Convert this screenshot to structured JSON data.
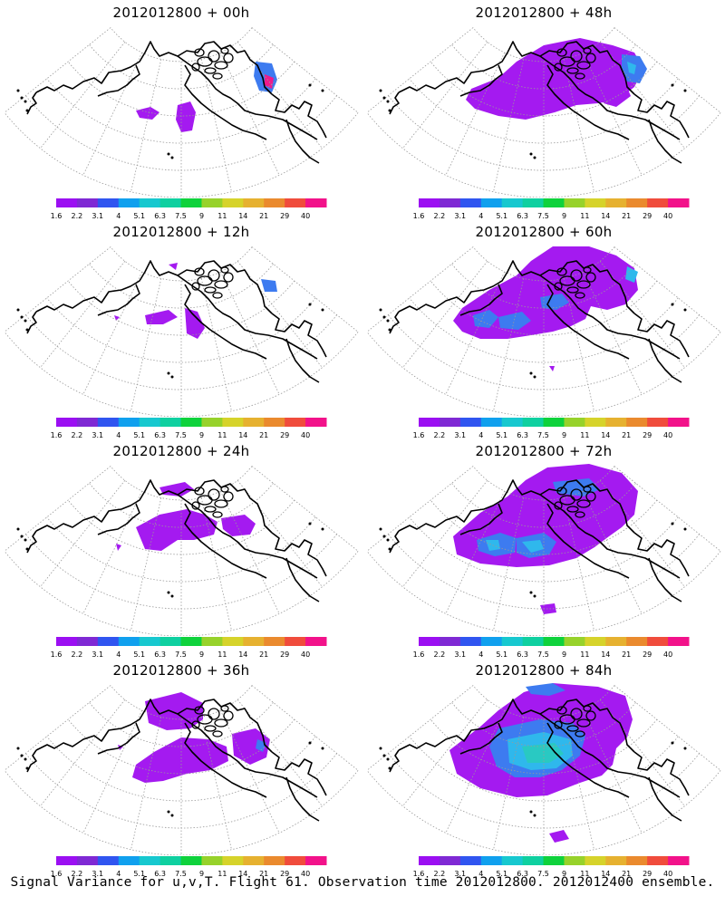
{
  "colorbar": {
    "labels": [
      "1.6",
      "2.2",
      "3.1",
      "4",
      "5.1",
      "6.3",
      "7.5",
      "9",
      "11",
      "14",
      "21",
      "29",
      "40"
    ],
    "colors": [
      "#9b0ff2",
      "#7f29d4",
      "#3055f0",
      "#10a0ee",
      "#17c8cf",
      "#0fd0a0",
      "#0fd23c",
      "#97d22b",
      "#d6d32b",
      "#e6b130",
      "#ea8a2e",
      "#f04c3c",
      "#f2128a"
    ]
  },
  "fill_colors": {
    "low": "#a41af0",
    "mid": "#3d7bf0",
    "cyan": "#2fb8ec",
    "teal": "#29c9c2",
    "pink": "#ee1a8c"
  },
  "panels": [
    {
      "id": "p00",
      "title": "2012012800 + 00h",
      "level": 0
    },
    {
      "id": "p48",
      "title": "2012012800 + 48h",
      "level": 4
    },
    {
      "id": "p12",
      "title": "2012012800 + 12h",
      "level": 1
    },
    {
      "id": "p60",
      "title": "2012012800 + 60h",
      "level": 5
    },
    {
      "id": "p24",
      "title": "2012012800 + 24h",
      "level": 2
    },
    {
      "id": "p72",
      "title": "2012012800 + 72h",
      "level": 6
    },
    {
      "id": "p36",
      "title": "2012012800 + 36h",
      "level": 3
    },
    {
      "id": "p84",
      "title": "2012012800 + 84h",
      "level": 7
    }
  ],
  "footer": "Signal Variance for u,v,T. Flight 61. Observation time 2012012800. 2012012400 ensemble."
}
